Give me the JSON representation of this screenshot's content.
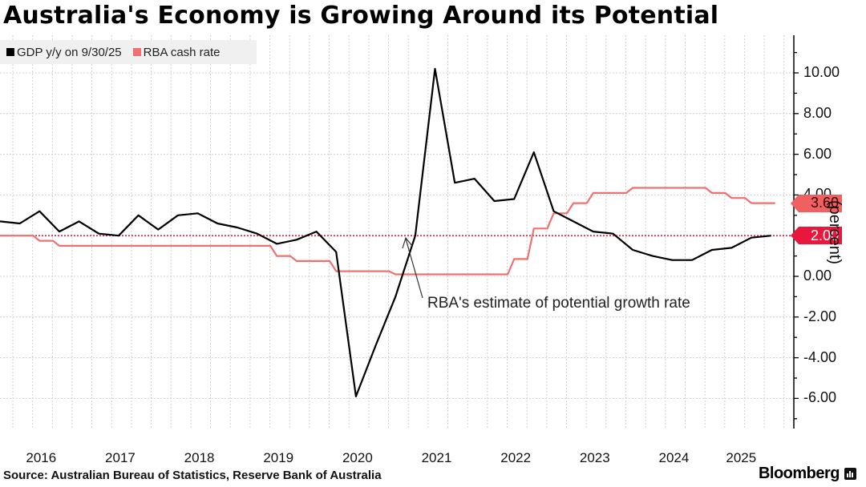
{
  "chart_data": {
    "type": "line",
    "title": "Australia's Economy is Growing Around its Potential",
    "ylabel": "(percent)",
    "xlabel": "",
    "ylim": [
      -7.5,
      11.8
    ],
    "yticks": [
      10,
      8,
      6,
      4,
      2,
      0,
      -2,
      -4,
      -6
    ],
    "ytick_labels": [
      "10.00",
      "8.00",
      "6.00",
      "4.00",
      "2.00",
      "0.00",
      "-2.00",
      "-4.00",
      "-6.00"
    ],
    "xtick_labels": [
      "2016",
      "2017",
      "2018",
      "2019",
      "2020",
      "2021",
      "2022",
      "2023",
      "2024",
      "2025"
    ],
    "grid": true,
    "legend_position": "top-left",
    "x_start": "2015-Q3",
    "x_step": "quarter",
    "series": [
      {
        "name": "GDP y/y on 9/30/25",
        "color": "#000000",
        "values": [
          2.7,
          2.6,
          3.2,
          2.2,
          2.7,
          2.1,
          2.0,
          3.0,
          2.3,
          3.0,
          3.1,
          2.6,
          2.4,
          2.1,
          1.6,
          1.8,
          2.2,
          1.2,
          -5.9,
          -3.4,
          -1.0,
          2.0,
          10.2,
          4.6,
          4.8,
          3.7,
          3.8,
          6.1,
          3.2,
          2.7,
          2.2,
          2.1,
          1.3,
          1.0,
          0.8,
          0.8,
          1.3,
          1.4,
          1.9,
          2.0
        ]
      },
      {
        "name": "RBA cash rate",
        "color": "#f07070",
        "values": [
          2.0,
          2.0,
          1.75,
          1.5,
          1.5,
          1.5,
          1.5,
          1.5,
          1.5,
          1.5,
          1.5,
          1.5,
          1.5,
          1.5,
          1.0,
          0.75,
          0.75,
          0.25,
          0.25,
          0.25,
          0.1,
          0.1,
          0.1,
          0.1,
          0.1,
          0.1,
          0.85,
          2.35,
          3.1,
          3.6,
          4.1,
          4.1,
          4.35,
          4.35,
          4.35,
          4.35,
          4.1,
          3.85,
          3.6,
          3.6
        ]
      }
    ],
    "reference_line": {
      "label": "RBA's estimate of potential growth rate",
      "value": 2.0,
      "color": "#e0204a"
    },
    "last_value_tags": [
      {
        "label": "3.60",
        "value": 3.6,
        "color": "#f06060",
        "text_color": "#3a0000"
      },
      {
        "label": "2.00",
        "value": 2.0,
        "color": "#e8183c",
        "text_color": "#ffffff"
      }
    ]
  },
  "legend": [
    {
      "label": "GDP y/y on 9/30/25",
      "color": "#000000"
    },
    {
      "label": "RBA cash rate",
      "color": "#f07070"
    }
  ],
  "annotation": "RBA's estimate of potential growth rate",
  "source": "Source: Australian Bureau of Statistics, Reserve Bank of Australia",
  "brand": "Bloomberg"
}
